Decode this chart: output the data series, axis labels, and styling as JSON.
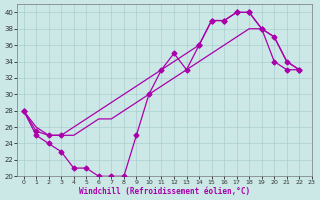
{
  "xlabel": "Windchill (Refroidissement éolien,°C)",
  "background_color": "#cbe8e7",
  "line_color": "#aa00aa",
  "xlim": [
    -0.5,
    23
  ],
  "ylim": [
    20,
    41
  ],
  "yticks": [
    20,
    22,
    24,
    26,
    28,
    30,
    32,
    34,
    36,
    38,
    40
  ],
  "xticks": [
    0,
    1,
    2,
    3,
    4,
    5,
    6,
    7,
    8,
    9,
    10,
    11,
    12,
    13,
    14,
    15,
    16,
    17,
    18,
    19,
    20,
    21,
    22,
    23
  ],
  "grid_color": "#aacfcf",
  "markersize": 2.5,
  "linewidth": 0.9,
  "line1_x": [
    0,
    1,
    2,
    3,
    4,
    5,
    6,
    7,
    8,
    9,
    10,
    11,
    12,
    13,
    14,
    15,
    16,
    17,
    18,
    19,
    20,
    21,
    22
  ],
  "line1_y": [
    28,
    25,
    24,
    23,
    21,
    21,
    20,
    20,
    20,
    25,
    30,
    33,
    35,
    33,
    36,
    39,
    39,
    40,
    40,
    38,
    34,
    33,
    33
  ],
  "line2_x": [
    0,
    1,
    2,
    3,
    4,
    5,
    6,
    7,
    8,
    9,
    10,
    11,
    12,
    13,
    14,
    15,
    16,
    17,
    18,
    19,
    20,
    21,
    22
  ],
  "line2_y": [
    28,
    26,
    25,
    25,
    25,
    26,
    27,
    27,
    28,
    29,
    30,
    31,
    32,
    33,
    34,
    35,
    36,
    37,
    38,
    38,
    37,
    34,
    33
  ],
  "line3_x": [
    0,
    1,
    2,
    3,
    14,
    15,
    16,
    17,
    18,
    19,
    20,
    21,
    22
  ],
  "line3_y": [
    28,
    25.5,
    25,
    25,
    36,
    39,
    39,
    40,
    40,
    38,
    37,
    34,
    33
  ]
}
